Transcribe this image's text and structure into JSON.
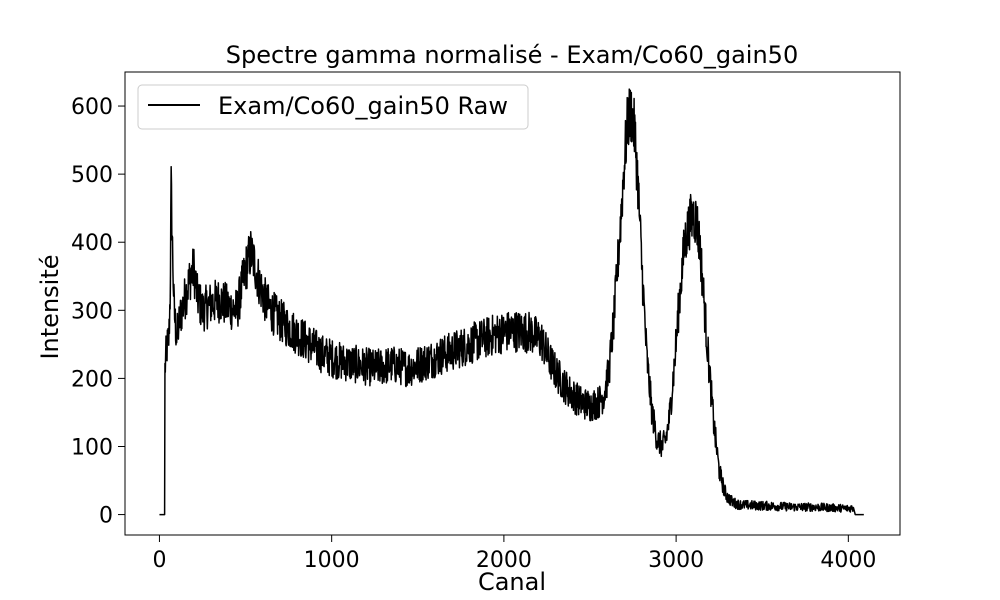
{
  "chart_data": {
    "type": "line",
    "title": "Spectre gamma normalisé - Exam/Co60_gain50",
    "xlabel": "Canal",
    "ylabel": "Intensité",
    "xlim": [
      -200,
      4300
    ],
    "ylim": [
      -30,
      650
    ],
    "xticks": [
      0,
      1000,
      2000,
      3000,
      4000
    ],
    "xtick_labels": [
      "0",
      "1000",
      "2000",
      "3000",
      "4000"
    ],
    "yticks": [
      0,
      100,
      200,
      300,
      400,
      500,
      600
    ],
    "ytick_labels": [
      "0",
      "100",
      "200",
      "300",
      "400",
      "500",
      "600"
    ],
    "grid": false,
    "legend_position": "upper left",
    "series": [
      {
        "name": "Exam/Co60_gain50 Raw",
        "color": "#000000",
        "x": [
          0,
          30,
          31,
          40,
          55,
          62,
          68,
          75,
          85,
          100,
          120,
          150,
          180,
          200,
          220,
          250,
          300,
          350,
          400,
          450,
          500,
          530,
          550,
          580,
          620,
          680,
          750,
          850,
          950,
          1050,
          1150,
          1250,
          1350,
          1450,
          1550,
          1650,
          1750,
          1850,
          1950,
          2050,
          2150,
          2220,
          2260,
          2300,
          2350,
          2400,
          2450,
          2500,
          2550,
          2580,
          2610,
          2640,
          2670,
          2700,
          2720,
          2740,
          2760,
          2780,
          2800,
          2830,
          2860,
          2890,
          2920,
          2940,
          2960,
          2990,
          3020,
          3050,
          3080,
          3100,
          3120,
          3140,
          3160,
          3190,
          3220,
          3250,
          3280,
          3300,
          3330,
          3360,
          3400,
          3500,
          3600,
          3700,
          3800,
          3900,
          4000,
          4030,
          4040,
          4090
        ],
        "y": [
          0,
          0,
          210,
          240,
          260,
          320,
          480,
          400,
          300,
          260,
          290,
          320,
          350,
          360,
          320,
          300,
          310,
          315,
          305,
          300,
          360,
          385,
          370,
          340,
          310,
          290,
          275,
          255,
          235,
          225,
          220,
          215,
          220,
          215,
          225,
          235,
          245,
          255,
          265,
          270,
          268,
          255,
          230,
          210,
          190,
          175,
          165,
          160,
          165,
          175,
          210,
          290,
          400,
          520,
          580,
          590,
          560,
          480,
          370,
          230,
          150,
          110,
          100,
          110,
          140,
          220,
          320,
          400,
          430,
          440,
          430,
          390,
          320,
          220,
          130,
          65,
          35,
          25,
          18,
          15,
          14,
          13,
          12,
          11,
          11,
          10,
          9,
          10,
          0,
          0
        ]
      }
    ]
  }
}
